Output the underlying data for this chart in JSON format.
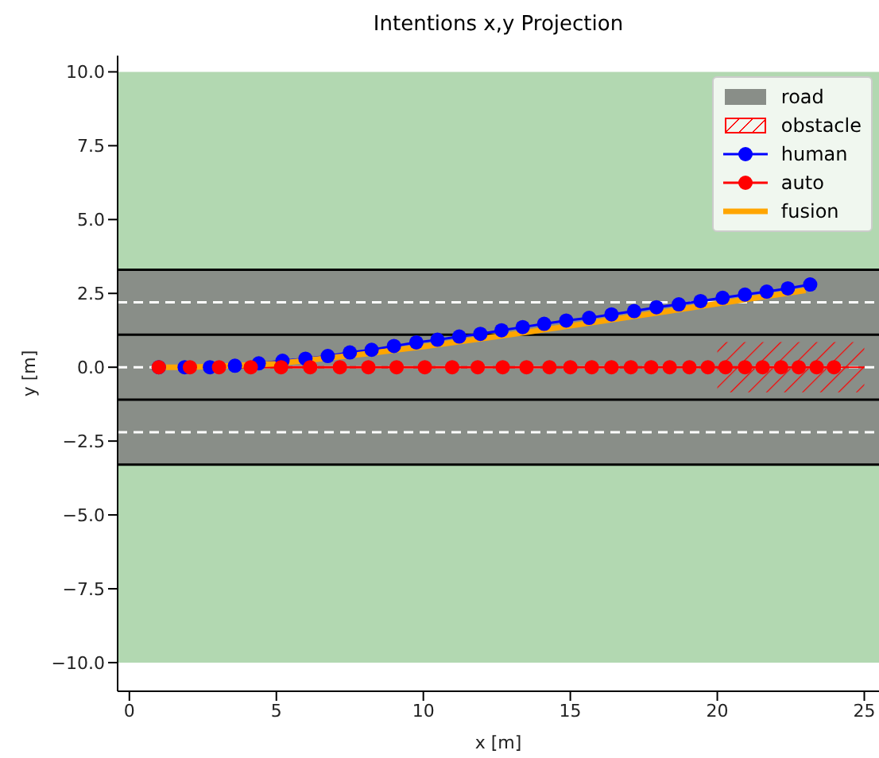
{
  "chart_data": {
    "type": "line",
    "title": "Intentions x,y Projection",
    "xlabel": "x [m]",
    "ylabel": "y [m]",
    "xlim": [
      -0.4,
      25.5
    ],
    "xticks": [
      0,
      5,
      10,
      15,
      20,
      25
    ],
    "ylim": [
      -10.97,
      10.55
    ],
    "yticks": [
      {
        "value": -10,
        "label": "−10.0"
      },
      {
        "value": -7.5,
        "label": "−7.5"
      },
      {
        "value": -5,
        "label": "−5.0"
      },
      {
        "value": -2.5,
        "label": "−2.5"
      },
      {
        "value": 0,
        "label": "0.0"
      },
      {
        "value": 2.5,
        "label": "2.5"
      },
      {
        "value": 5,
        "label": "5.0"
      },
      {
        "value": 7.5,
        "label": "7.5"
      },
      {
        "value": 10,
        "label": "10.0"
      }
    ],
    "bands": [
      {
        "axis": "y",
        "from": -10,
        "to": 10,
        "color": "#b2d8b1"
      },
      {
        "axis": "y",
        "from": -3.3,
        "to": 3.3,
        "label": "road",
        "color": "#898e88"
      }
    ],
    "ref_lines": [
      {
        "axis": "y",
        "value": 3.3,
        "color": "#000000",
        "line_style": "solid"
      },
      {
        "axis": "y",
        "value": 1.1,
        "color": "#000000",
        "line_style": "solid"
      },
      {
        "axis": "y",
        "value": -1.1,
        "color": "#000000",
        "line_style": "solid"
      },
      {
        "axis": "y",
        "value": -3.3,
        "color": "#000000",
        "line_style": "solid"
      },
      {
        "axis": "y",
        "value": 2.2,
        "color": "#ffffff",
        "line_style": "dashed"
      },
      {
        "axis": "y",
        "value": 0,
        "color": "#ffffff",
        "line_style": "dashed"
      },
      {
        "axis": "y",
        "value": -2.2,
        "color": "#ffffff",
        "line_style": "dashed"
      }
    ],
    "marker": "circle",
    "line_style": "solid",
    "legend": "top right",
    "series": [
      {
        "name": "obstacle",
        "color": "#ff0000",
        "marker": "none",
        "x": [
          20,
          25
        ],
        "values": [
          0,
          0
        ],
        "lower": [
          -0.85,
          -0.85
        ],
        "upper": [
          0.85,
          0.85
        ]
      },
      {
        "name": "human",
        "color": "#0000ff",
        "x": [
          1,
          1.88,
          2.74,
          3.59,
          4.4,
          5.21,
          5.99,
          6.75,
          7.5,
          8.24,
          9,
          9.76,
          10.48,
          11.22,
          11.94,
          12.66,
          13.38,
          14.11,
          14.86,
          15.64,
          16.4,
          17.17,
          17.93,
          18.69,
          19.43,
          20.18,
          20.94,
          21.68,
          22.4,
          23.16
        ],
        "values": [
          0,
          0,
          0,
          0.05,
          0.13,
          0.22,
          0.29,
          0.38,
          0.5,
          0.59,
          0.72,
          0.84,
          0.93,
          1.04,
          1.13,
          1.25,
          1.36,
          1.47,
          1.58,
          1.67,
          1.79,
          1.9,
          2.03,
          2.13,
          2.24,
          2.35,
          2.46,
          2.56,
          2.67,
          2.8
        ]
      },
      {
        "name": "auto",
        "color": "#ff0000",
        "x": [
          1,
          2.06,
          3.05,
          4.13,
          5.16,
          6.15,
          7.16,
          8.13,
          9.09,
          10.05,
          10.98,
          11.85,
          12.7,
          13.51,
          14.29,
          15,
          15.73,
          16.4,
          17.06,
          17.75,
          18.38,
          19.05,
          19.68,
          20.28,
          20.94,
          21.54,
          22.17,
          22.77,
          23.38,
          23.97
        ],
        "values": [
          0,
          0,
          0,
          0,
          0,
          0,
          0,
          0,
          0,
          0,
          0,
          0,
          0,
          0,
          0,
          0,
          0,
          0,
          0,
          0,
          0,
          0,
          0,
          0,
          0,
          0,
          0,
          0,
          0,
          0
        ]
      },
      {
        "name": "fusion",
        "color": "#ffa500",
        "marker": "none",
        "x": [
          1,
          2,
          3,
          5,
          8,
          10,
          12.7,
          15,
          18,
          20,
          23
        ],
        "values": [
          0,
          0,
          0.03,
          0.12,
          0.45,
          0.7,
          1.07,
          1.4,
          1.85,
          2.15,
          2.6
        ]
      }
    ]
  }
}
